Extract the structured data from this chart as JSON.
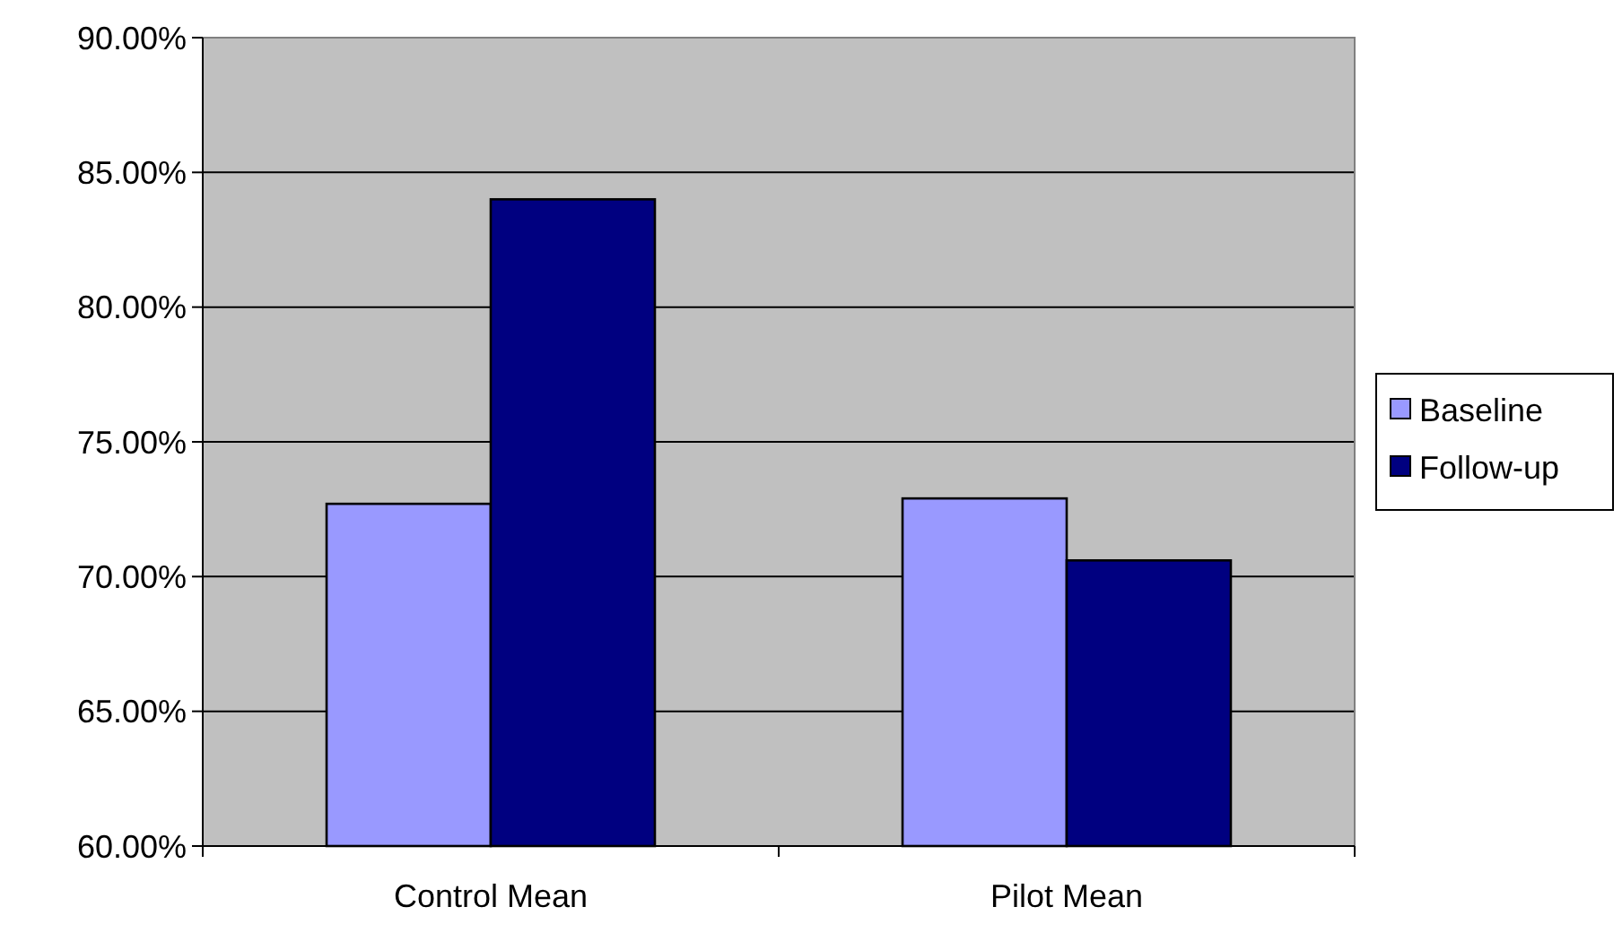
{
  "chart_data": {
    "type": "bar",
    "categories": [
      "Control Mean",
      "Pilot Mean"
    ],
    "series": [
      {
        "name": "Baseline",
        "color": "#9999ff",
        "values": [
          72.7,
          72.9
        ]
      },
      {
        "name": "Follow-up",
        "color": "#000080",
        "values": [
          84.0,
          70.6
        ]
      }
    ],
    "ylim": [
      60,
      90
    ],
    "yticks": [
      {
        "value": 60,
        "label": "60.00%"
      },
      {
        "value": 65,
        "label": "65.00%"
      },
      {
        "value": 70,
        "label": "70.00%"
      },
      {
        "value": 75,
        "label": "75.00%"
      },
      {
        "value": 80,
        "label": "80.00%"
      },
      {
        "value": 85,
        "label": "85.00%"
      },
      {
        "value": 90,
        "label": "90.00%"
      }
    ],
    "grid": "y",
    "legend": "right"
  }
}
